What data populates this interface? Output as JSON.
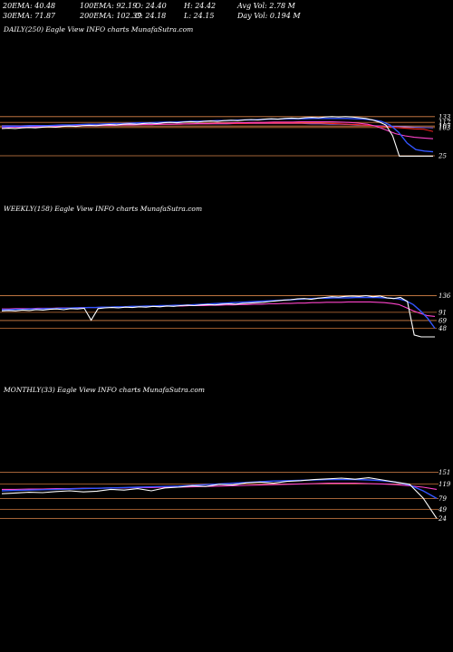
{
  "header": {
    "ema20": "20EMA: 40.48",
    "ema100": "100EMA: 92.19",
    "open": "O: 24.40",
    "high": "H: 24.42",
    "avgvol": "Avg Vol: 2.78  M",
    "ema30": "30EMA: 71.87",
    "ema200": "200EMA: 102.39",
    "close": "C: 24.18",
    "low": "L: 24.15",
    "dayvol": "Day Vol: 0.194  M"
  },
  "colors": {
    "background": "#000000",
    "price": "#ffffff",
    "ema_blue": "#3355ff",
    "ema_pink": "#ff44cc",
    "ema_red": "#ff2222",
    "level_orange": "#c8743a"
  },
  "chart_data": [
    {
      "type": "line",
      "caption": "DAILY(250) Eagle   View  INFO charts MunafaSutra.com",
      "right_labels": [
        "133",
        "117",
        "107",
        "103",
        "25"
      ],
      "x_count": 250,
      "series": [
        {
          "values": [
            100,
            101,
            100,
            102,
            103,
            102,
            104,
            105,
            104,
            106,
            107,
            106,
            108,
            109,
            108,
            110,
            111,
            110,
            112,
            113,
            112,
            114,
            115,
            114,
            116,
            117,
            116,
            118,
            119,
            118,
            120,
            121,
            120,
            122,
            123,
            122,
            124,
            125,
            124,
            126,
            127,
            126,
            128,
            129,
            128,
            130,
            131,
            130,
            132,
            133,
            132,
            133,
            132,
            130,
            128,
            124,
            118,
            110,
            80,
            24,
            24,
            24,
            24,
            24,
            24
          ]
        },
        {
          "values": [
            105,
            106,
            106,
            107,
            108,
            108,
            109,
            110,
            110,
            111,
            112,
            112,
            113,
            114,
            114,
            115,
            116,
            116,
            117,
            118,
            118,
            119,
            120,
            120,
            121,
            122,
            122,
            123,
            124,
            124,
            125,
            126,
            126,
            127,
            127,
            127,
            128,
            128,
            128,
            128,
            128,
            127,
            126,
            124,
            120,
            110,
            90,
            60,
            42,
            38,
            36
          ]
        },
        {
          "values": [
            103,
            104,
            104,
            105,
            105,
            106,
            106,
            107,
            107,
            108,
            108,
            109,
            109,
            110,
            110,
            111,
            111,
            112,
            112,
            113,
            113,
            114,
            114,
            115,
            115,
            116,
            116,
            117,
            117,
            118,
            118,
            118,
            119,
            119,
            119,
            119,
            118,
            117,
            115,
            112,
            106,
            96,
            86,
            80,
            76,
            74,
            72
          ]
        },
        {
          "values": [
            106,
            106,
            107,
            107,
            107,
            108,
            108,
            108,
            109,
            109,
            109,
            110,
            110,
            110,
            111,
            111,
            111,
            112,
            112,
            112,
            113,
            113,
            113,
            114,
            114,
            114,
            114,
            115,
            115,
            115,
            115,
            115,
            115,
            115,
            115,
            114,
            113,
            112,
            111,
            109,
            107,
            105,
            103,
            101,
            99,
            98,
            92
          ]
        },
        {
          "values": [
            108,
            108,
            108,
            109,
            109,
            109,
            109,
            110,
            110,
            110,
            110,
            111,
            111,
            111,
            111,
            112,
            112,
            112,
            112,
            112,
            113,
            113,
            113,
            113,
            113,
            114,
            114,
            114,
            114,
            114,
            114,
            114,
            114,
            113,
            113,
            112,
            112,
            111,
            110,
            109,
            108,
            107,
            106,
            105,
            104,
            103,
            102
          ]
        }
      ],
      "levels": [
        133,
        117,
        107,
        103,
        25
      ]
    },
    {
      "type": "line",
      "caption": "WEEKLY(158) Eagle   View  INFO charts MunafaSutra.com",
      "right_labels": [
        "136",
        "91",
        "69",
        "48"
      ],
      "x_count": 158,
      "series": [
        {
          "values": [
            95,
            96,
            95,
            97,
            96,
            98,
            97,
            99,
            100,
            98,
            101,
            100,
            102,
            70,
            101,
            103,
            104,
            103,
            105,
            104,
            106,
            105,
            107,
            106,
            108,
            107,
            109,
            110,
            109,
            111,
            112,
            111,
            113,
            114,
            113,
            115,
            116,
            117,
            118,
            120,
            122,
            124,
            125,
            127,
            128,
            126,
            129,
            131,
            133,
            132,
            134,
            135,
            134,
            136,
            133,
            135,
            130,
            128,
            131,
            120,
            30,
            25,
            25,
            25
          ]
        },
        {
          "values": [
            98,
            98,
            99,
            99,
            100,
            100,
            101,
            101,
            102,
            102,
            103,
            103,
            104,
            104,
            105,
            105,
            106,
            106,
            107,
            107,
            108,
            108,
            109,
            109,
            110,
            110,
            111,
            112,
            113,
            114,
            115,
            116,
            117,
            118,
            119,
            120,
            121,
            122,
            123,
            124,
            125,
            126,
            127,
            128,
            129,
            129,
            130,
            130,
            130,
            131,
            131,
            131,
            131,
            130,
            129,
            127,
            122,
            112,
            95,
            75,
            48
          ]
        },
        {
          "values": [
            100,
            100,
            101,
            101,
            101,
            102,
            102,
            102,
            103,
            103,
            103,
            104,
            104,
            104,
            105,
            105,
            105,
            106,
            106,
            106,
            107,
            107,
            107,
            108,
            108,
            108,
            109,
            109,
            109,
            110,
            110,
            111,
            111,
            112,
            112,
            113,
            113,
            114,
            114,
            115,
            115,
            116,
            116,
            117,
            117,
            118,
            118,
            118,
            119,
            119,
            119,
            119,
            118,
            117,
            115,
            112,
            104,
            95,
            88,
            82,
            80
          ]
        }
      ],
      "levels": [
        136,
        91,
        69,
        48
      ]
    },
    {
      "type": "line",
      "caption": "MONTHLY(33) Eagle   View  INFO charts MunafaSutra.com",
      "right_labels": [
        "151",
        "119",
        "79",
        "49",
        "24"
      ],
      "x_count": 33,
      "series": [
        {
          "values": [
            92,
            94,
            96,
            95,
            98,
            100,
            97,
            99,
            104,
            102,
            106,
            100,
            108,
            110,
            114,
            112,
            118,
            116,
            122,
            124,
            121,
            126,
            128,
            131,
            133,
            135,
            132,
            136,
            130,
            124,
            118,
            80,
            24
          ]
        },
        {
          "values": [
            100,
            101,
            102,
            103,
            104,
            105,
            106,
            107,
            108,
            109,
            110,
            111,
            112,
            113,
            115,
            117,
            119,
            121,
            123,
            125,
            127,
            128,
            129,
            130,
            131,
            131,
            131,
            130,
            128,
            124,
            116,
            100,
            79
          ]
        },
        {
          "values": [
            104,
            104,
            105,
            105,
            106,
            106,
            107,
            107,
            108,
            108,
            109,
            109,
            110,
            110,
            111,
            112,
            113,
            114,
            115,
            116,
            117,
            118,
            119,
            120,
            121,
            121,
            121,
            120,
            119,
            117,
            114,
            110,
            104
          ]
        }
      ],
      "levels": [
        151,
        119,
        79,
        49,
        24
      ]
    }
  ]
}
